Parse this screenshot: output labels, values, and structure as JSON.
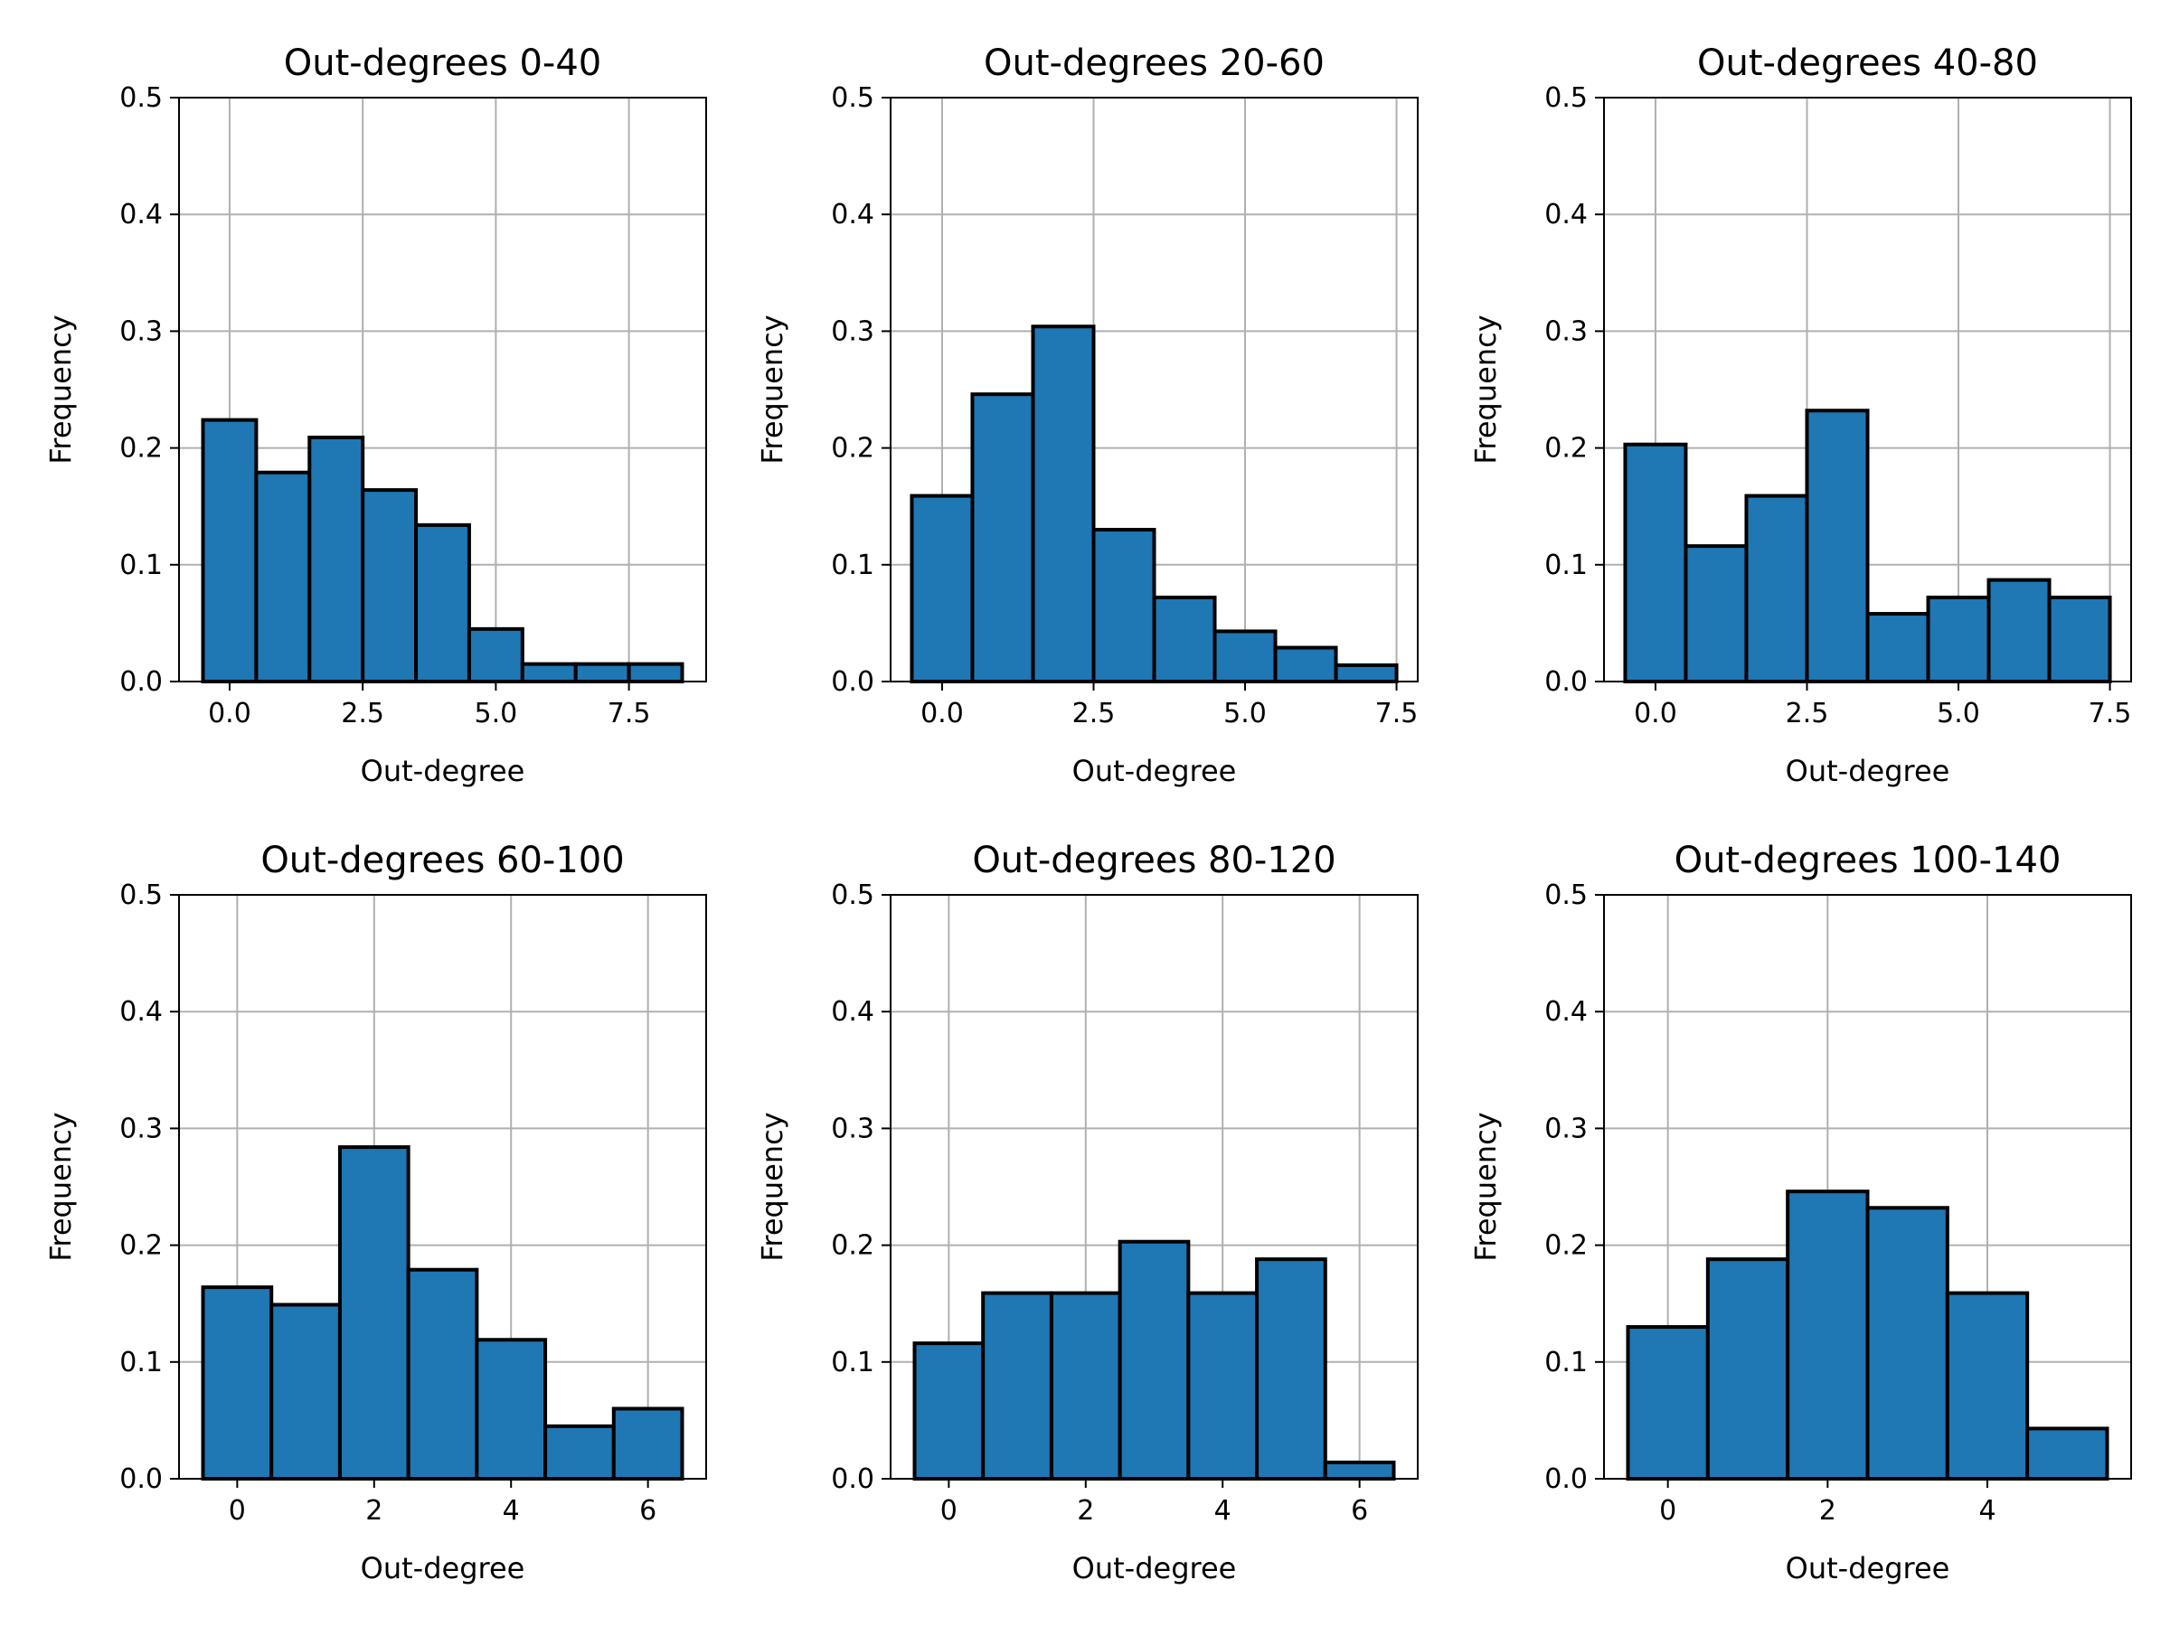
{
  "figure": {
    "background": "#ffffff"
  },
  "style": {
    "bar_color": "#1f77b4",
    "edge_color": "#000000",
    "grid_color": "#b0b0b0"
  },
  "chart_data": [
    {
      "type": "bar",
      "title": "Out-degrees 0-40",
      "xlabel": "Out-degree",
      "ylabel": "Frequency",
      "xlim": [
        -0.95,
        8.95
      ],
      "ylim": [
        0,
        0.5
      ],
      "xticks": [
        0,
        2.5,
        5,
        7.5
      ],
      "xtick_labels": [
        "0.0",
        "2.5",
        "5.0",
        "7.5"
      ],
      "yticks": [
        0,
        0.1,
        0.2,
        0.3,
        0.4,
        0.5
      ],
      "ytick_labels": [
        "0.0",
        "0.1",
        "0.2",
        "0.3",
        "0.4",
        "0.5"
      ],
      "grid": true,
      "bins": [
        0,
        1,
        2,
        3,
        4,
        5,
        6,
        7,
        8
      ],
      "values": [
        0.224,
        0.179,
        0.209,
        0.164,
        0.134,
        0.045,
        0.015,
        0.015,
        0.015
      ]
    },
    {
      "type": "bar",
      "title": "Out-degrees 20-60",
      "xlabel": "Out-degree",
      "ylabel": "Frequency",
      "xlim": [
        -0.85,
        7.85
      ],
      "ylim": [
        0,
        0.5
      ],
      "xticks": [
        0,
        2.5,
        5,
        7.5
      ],
      "xtick_labels": [
        "0.0",
        "2.5",
        "5.0",
        "7.5"
      ],
      "yticks": [
        0,
        0.1,
        0.2,
        0.3,
        0.4,
        0.5
      ],
      "ytick_labels": [
        "0.0",
        "0.1",
        "0.2",
        "0.3",
        "0.4",
        "0.5"
      ],
      "grid": true,
      "bins": [
        0,
        1,
        2,
        3,
        4,
        5,
        6,
        7
      ],
      "values": [
        0.159,
        0.246,
        0.304,
        0.13,
        0.072,
        0.043,
        0.029,
        0.014
      ]
    },
    {
      "type": "bar",
      "title": "Out-degrees 40-80",
      "xlabel": "Out-degree",
      "ylabel": "Frequency",
      "xlim": [
        -0.85,
        7.85
      ],
      "ylim": [
        0,
        0.5
      ],
      "xticks": [
        0,
        2.5,
        5,
        7.5
      ],
      "xtick_labels": [
        "0.0",
        "2.5",
        "5.0",
        "7.5"
      ],
      "yticks": [
        0,
        0.1,
        0.2,
        0.3,
        0.4,
        0.5
      ],
      "ytick_labels": [
        "0.0",
        "0.1",
        "0.2",
        "0.3",
        "0.4",
        "0.5"
      ],
      "grid": true,
      "bins": [
        0,
        1,
        2,
        3,
        4,
        5,
        6,
        7
      ],
      "values": [
        0.203,
        0.116,
        0.159,
        0.232,
        0.058,
        0.072,
        0.087,
        0.072
      ]
    },
    {
      "type": "bar",
      "title": "Out-degrees 60-100",
      "xlabel": "Out-degree",
      "ylabel": "Frequency",
      "xlim": [
        -0.85,
        6.85
      ],
      "ylim": [
        0,
        0.5
      ],
      "xticks": [
        0,
        2,
        4,
        6
      ],
      "xtick_labels": [
        "0",
        "2",
        "4",
        "6"
      ],
      "yticks": [
        0,
        0.1,
        0.2,
        0.3,
        0.4,
        0.5
      ],
      "ytick_labels": [
        "0.0",
        "0.1",
        "0.2",
        "0.3",
        "0.4",
        "0.5"
      ],
      "grid": true,
      "bins": [
        0,
        1,
        2,
        3,
        4,
        5,
        6
      ],
      "values": [
        0.164,
        0.149,
        0.284,
        0.179,
        0.119,
        0.045,
        0.06
      ]
    },
    {
      "type": "bar",
      "title": "Out-degrees 80-120",
      "xlabel": "Out-degree",
      "ylabel": "Frequency",
      "xlim": [
        -0.85,
        6.85
      ],
      "ylim": [
        0,
        0.5
      ],
      "xticks": [
        0,
        2,
        4,
        6
      ],
      "xtick_labels": [
        "0",
        "2",
        "4",
        "6"
      ],
      "yticks": [
        0,
        0.1,
        0.2,
        0.3,
        0.4,
        0.5
      ],
      "ytick_labels": [
        "0.0",
        "0.1",
        "0.2",
        "0.3",
        "0.4",
        "0.5"
      ],
      "grid": true,
      "bins": [
        0,
        1,
        2,
        3,
        4,
        5,
        6
      ],
      "values": [
        0.116,
        0.159,
        0.159,
        0.203,
        0.159,
        0.188,
        0.014
      ]
    },
    {
      "type": "bar",
      "title": "Out-degrees 100-140",
      "xlabel": "Out-degree",
      "ylabel": "Frequency",
      "xlim": [
        -0.8,
        5.8
      ],
      "ylim": [
        0,
        0.5
      ],
      "xticks": [
        0,
        2,
        4
      ],
      "xtick_labels": [
        "0",
        "2",
        "4"
      ],
      "yticks": [
        0,
        0.1,
        0.2,
        0.3,
        0.4,
        0.5
      ],
      "ytick_labels": [
        "0.0",
        "0.1",
        "0.2",
        "0.3",
        "0.4",
        "0.5"
      ],
      "grid": true,
      "bins": [
        0,
        1,
        2,
        3,
        4,
        5
      ],
      "values": [
        0.13,
        0.188,
        0.246,
        0.232,
        0.159,
        0.043
      ]
    }
  ]
}
